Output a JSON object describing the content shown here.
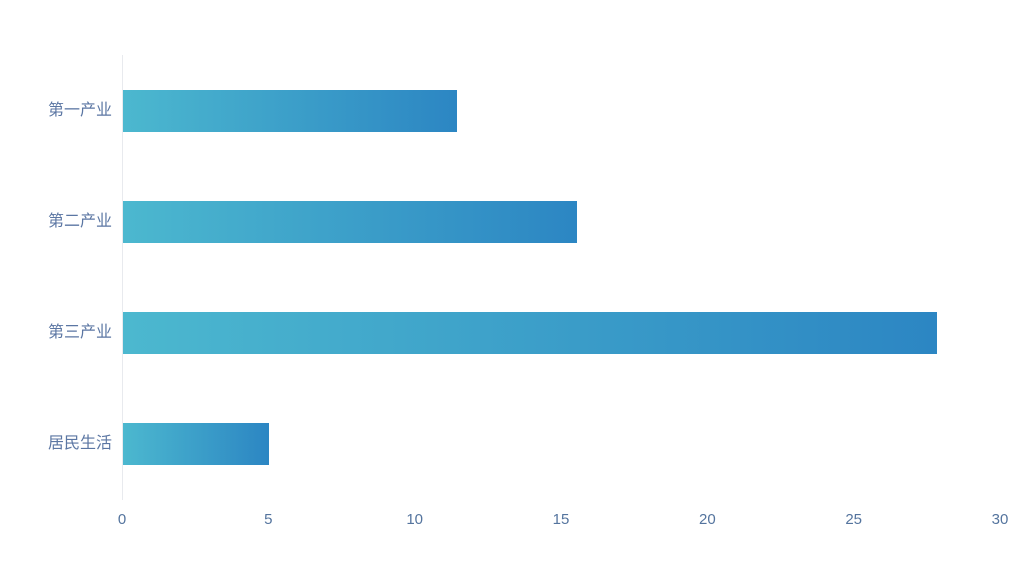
{
  "chart_data": {
    "type": "bar",
    "orientation": "horizontal",
    "title": "",
    "categories": [
      "第一产业",
      "第二产业",
      "第三产业",
      "居民生活"
    ],
    "values": [
      11.4,
      15.5,
      27.8,
      5
    ],
    "xlabel": "",
    "ylabel": "",
    "xlim": [
      0,
      30
    ],
    "xticks": [
      0,
      5,
      10,
      15,
      20,
      25,
      30
    ],
    "grid": "off",
    "legend": "none",
    "bar_gradient_start": "#4CB8CF",
    "bar_gradient_end": "#2C86C3",
    "category_label_color": "#5B76A3",
    "tick_label_color": "#54749E",
    "axis_line_color": "#E8EAEE",
    "background_color": "#FFFFFF"
  }
}
